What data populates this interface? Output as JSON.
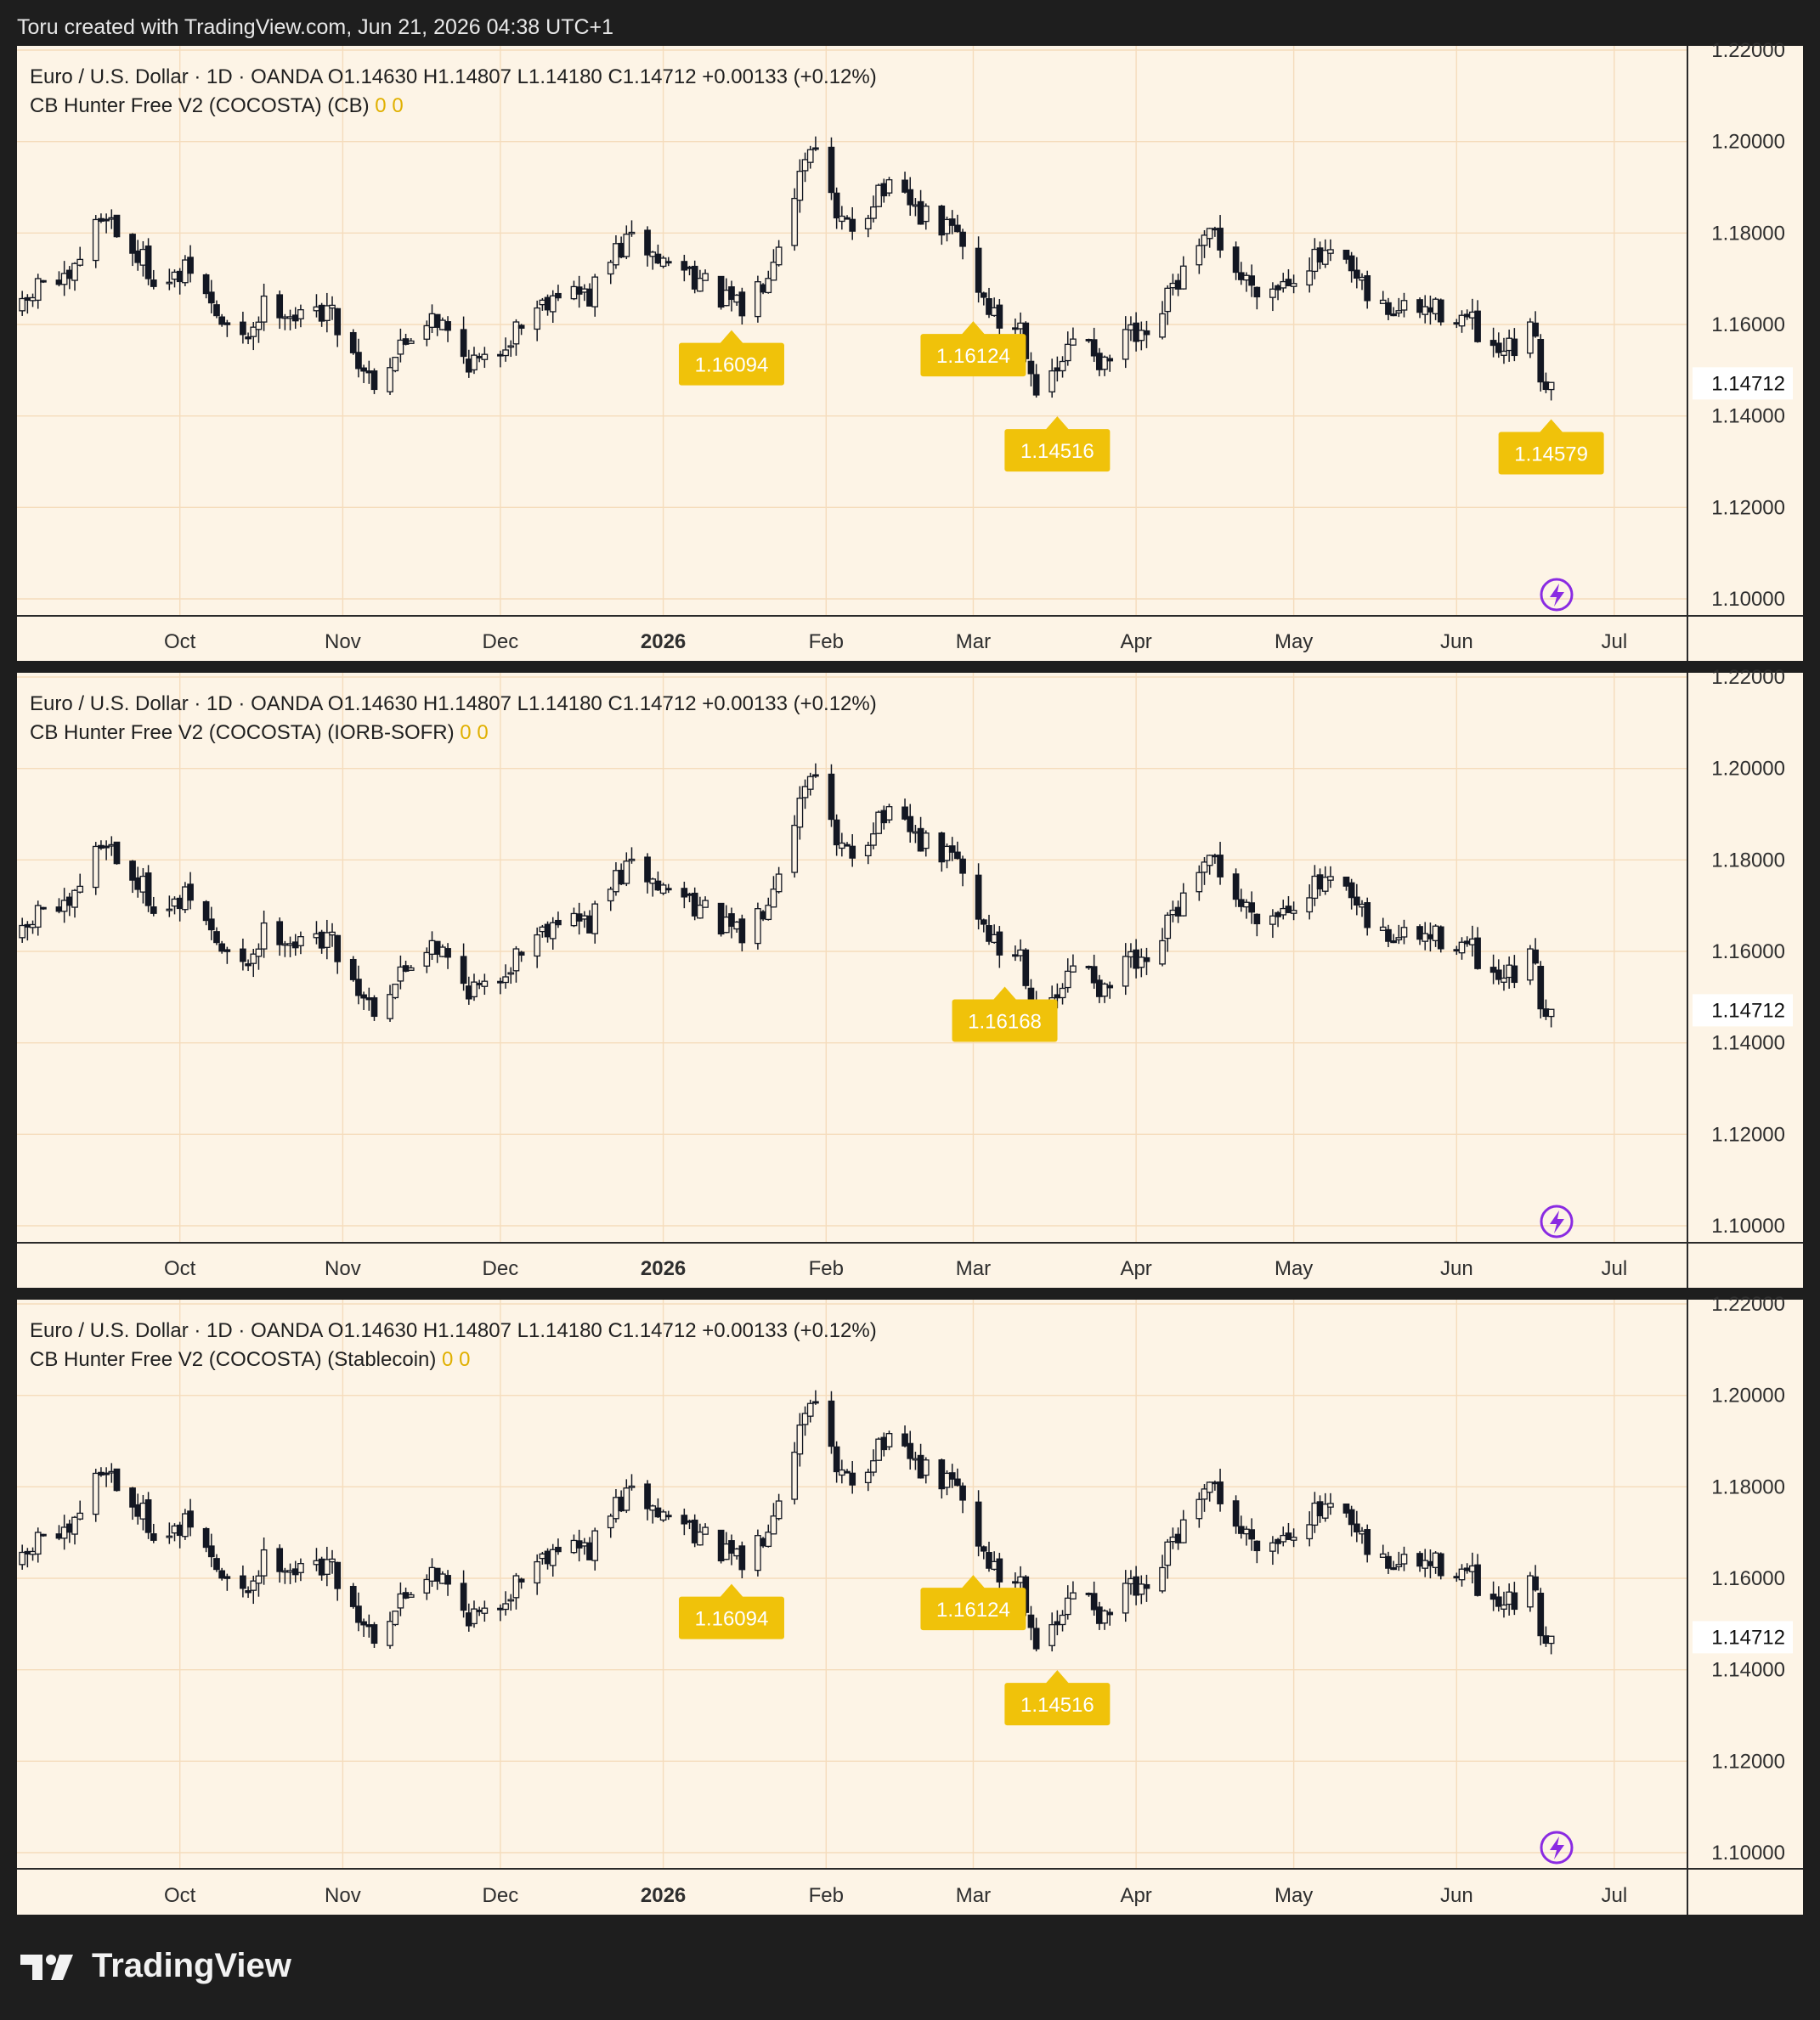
{
  "caption": "Toru created with TradingView.com, Jun 21, 2026 04:38 UTC+1",
  "brand": {
    "name": "TradingView",
    "logo_icon": "tradingview-logo-icon"
  },
  "colors": {
    "frame": "#1e1e1e",
    "plot_bg": "#fdf4e6",
    "grid": "#f5dcbc",
    "candle": "#131722",
    "label_bg": "#f0c20a",
    "label_text": "#ffffff",
    "indicator_values": "#e0b000",
    "bolt": "#8a2be2"
  },
  "chart_data": [
    {
      "type": "candlestick",
      "header": {
        "symbol": "Euro / U.S. Dollar · 1D · OANDA",
        "open_label": "O",
        "open": "1.14630",
        "high_label": "H",
        "high": "1.14807",
        "low_label": "L",
        "low": "1.14180",
        "close_label": "C",
        "close": "1.14712",
        "change": "+0.00133 (+0.12%)"
      },
      "indicator": {
        "name": "CB Hunter Free V2 (COCOSTA) (CB)",
        "values": [
          "0",
          "0"
        ]
      },
      "x_ticks": [
        "Oct",
        "Nov",
        "Dec",
        "2026",
        "Feb",
        "Mar",
        "Apr",
        "May",
        "Jun",
        "Jul"
      ],
      "y_ticks": [
        "1.22000",
        "1.20000",
        "1.18000",
        "1.16000",
        "1.14000",
        "1.12000",
        "1.10000"
      ],
      "ylim": [
        1.1,
        1.22
      ],
      "last_price": "1.14712",
      "grid": true,
      "labels": [
        {
          "text": "1.16094",
          "date": "2026-01-14"
        },
        {
          "text": "1.16124",
          "date": "2026-03-01"
        },
        {
          "text": "1.14516",
          "date": "2026-03-17"
        },
        {
          "text": "1.14579",
          "date": "2026-06-19"
        }
      ]
    },
    {
      "type": "candlestick",
      "header": {
        "symbol": "Euro / U.S. Dollar · 1D · OANDA",
        "open_label": "O",
        "open": "1.14630",
        "high_label": "H",
        "high": "1.14807",
        "low_label": "L",
        "low": "1.14180",
        "close_label": "C",
        "close": "1.14712",
        "change": "+0.00133 (+0.12%)"
      },
      "indicator": {
        "name": "CB Hunter Free V2 (COCOSTA) (IORB-SOFR)",
        "values": [
          "0",
          "0"
        ]
      },
      "x_ticks": [
        "Oct",
        "Nov",
        "Dec",
        "2026",
        "Feb",
        "Mar",
        "Apr",
        "May",
        "Jun",
        "Jul"
      ],
      "y_ticks": [
        "1.22000",
        "1.20000",
        "1.18000",
        "1.16000",
        "1.14000",
        "1.12000",
        "1.10000"
      ],
      "ylim": [
        1.1,
        1.22
      ],
      "last_price": "1.14712",
      "grid": true,
      "labels": [
        {
          "text": "1.16168",
          "date": "2026-03-07"
        }
      ]
    },
    {
      "type": "candlestick",
      "header": {
        "symbol": "Euro / U.S. Dollar · 1D · OANDA",
        "open_label": "O",
        "open": "1.14630",
        "high_label": "H",
        "high": "1.14807",
        "low_label": "L",
        "low": "1.14180",
        "close_label": "C",
        "close": "1.14712",
        "change": "+0.00133 (+0.12%)"
      },
      "indicator": {
        "name": "CB Hunter Free V2 (COCOSTA) (Stablecoin)",
        "values": [
          "0",
          "0"
        ]
      },
      "x_ticks": [
        "Oct",
        "Nov",
        "Dec",
        "2026",
        "Feb",
        "Mar",
        "Apr",
        "May",
        "Jun",
        "Jul"
      ],
      "y_ticks": [
        "1.22000",
        "1.20000",
        "1.18000",
        "1.16000",
        "1.14000",
        "1.12000",
        "1.10000"
      ],
      "ylim": [
        1.1,
        1.22
      ],
      "last_price": "1.14712",
      "grid": true,
      "labels": [
        {
          "text": "1.16094",
          "date": "2026-01-14"
        },
        {
          "text": "1.16124",
          "date": "2026-03-01"
        },
        {
          "text": "1.14516",
          "date": "2026-03-17"
        }
      ]
    }
  ],
  "price_path": {
    "start_date": "2025-09-01",
    "end_date": "2026-06-19",
    "waypoints": [
      [
        "2025-09-01",
        1.163
      ],
      [
        "2025-09-05",
        1.17
      ],
      [
        "2025-09-10",
        1.168
      ],
      [
        "2025-09-13",
        1.178
      ],
      [
        "2025-09-17",
        1.185
      ],
      [
        "2025-09-20",
        1.178
      ],
      [
        "2025-09-24",
        1.174
      ],
      [
        "2025-09-28",
        1.168
      ],
      [
        "2025-10-03",
        1.172
      ],
      [
        "2025-10-09",
        1.16
      ],
      [
        "2025-10-13",
        1.156
      ],
      [
        "2025-10-18",
        1.166
      ],
      [
        "2025-10-24",
        1.161
      ],
      [
        "2025-10-29",
        1.164
      ],
      [
        "2025-11-04",
        1.152
      ],
      [
        "2025-11-07",
        1.148
      ],
      [
        "2025-11-12",
        1.155
      ],
      [
        "2025-11-18",
        1.163
      ],
      [
        "2025-11-24",
        1.153
      ],
      [
        "2025-11-28",
        1.151
      ],
      [
        "2025-12-06",
        1.162
      ],
      [
        "2025-12-12",
        1.168
      ],
      [
        "2025-12-18",
        1.166
      ],
      [
        "2025-12-23",
        1.176
      ],
      [
        "2025-12-27",
        1.179
      ],
      [
        "2025-12-31",
        1.174
      ],
      [
        "2026-01-06",
        1.172
      ],
      [
        "2026-01-10",
        1.167
      ],
      [
        "2026-01-16",
        1.163
      ],
      [
        "2026-01-20",
        1.17
      ],
      [
        "2026-01-24",
        1.182
      ],
      [
        "2026-01-28",
        1.197
      ],
      [
        "2026-01-30",
        1.201
      ],
      [
        "2026-02-03",
        1.182
      ],
      [
        "2026-02-07",
        1.181
      ],
      [
        "2026-02-11",
        1.19
      ],
      [
        "2026-02-17",
        1.186
      ],
      [
        "2026-02-21",
        1.182
      ],
      [
        "2026-02-26",
        1.18
      ],
      [
        "2026-03-02",
        1.168
      ],
      [
        "2026-03-06",
        1.16
      ],
      [
        "2026-03-10",
        1.16
      ],
      [
        "2026-03-14",
        1.142
      ],
      [
        "2026-03-18",
        1.152
      ],
      [
        "2026-03-22",
        1.16
      ],
      [
        "2026-03-26",
        1.15
      ],
      [
        "2026-03-30",
        1.158
      ],
      [
        "2026-04-03",
        1.155
      ],
      [
        "2026-04-08",
        1.168
      ],
      [
        "2026-04-12",
        1.174
      ],
      [
        "2026-04-16",
        1.18
      ],
      [
        "2026-04-21",
        1.17
      ],
      [
        "2026-04-27",
        1.168
      ],
      [
        "2026-05-04",
        1.174
      ],
      [
        "2026-05-10",
        1.174
      ],
      [
        "2026-05-16",
        1.164
      ],
      [
        "2026-05-20",
        1.163
      ],
      [
        "2026-05-25",
        1.163
      ],
      [
        "2026-05-31",
        1.163
      ],
      [
        "2026-06-04",
        1.16
      ],
      [
        "2026-06-07",
        1.152
      ],
      [
        "2026-06-13",
        1.155
      ],
      [
        "2026-06-16",
        1.159
      ],
      [
        "2026-06-17",
        1.149
      ],
      [
        "2026-06-19",
        1.1471
      ]
    ]
  }
}
